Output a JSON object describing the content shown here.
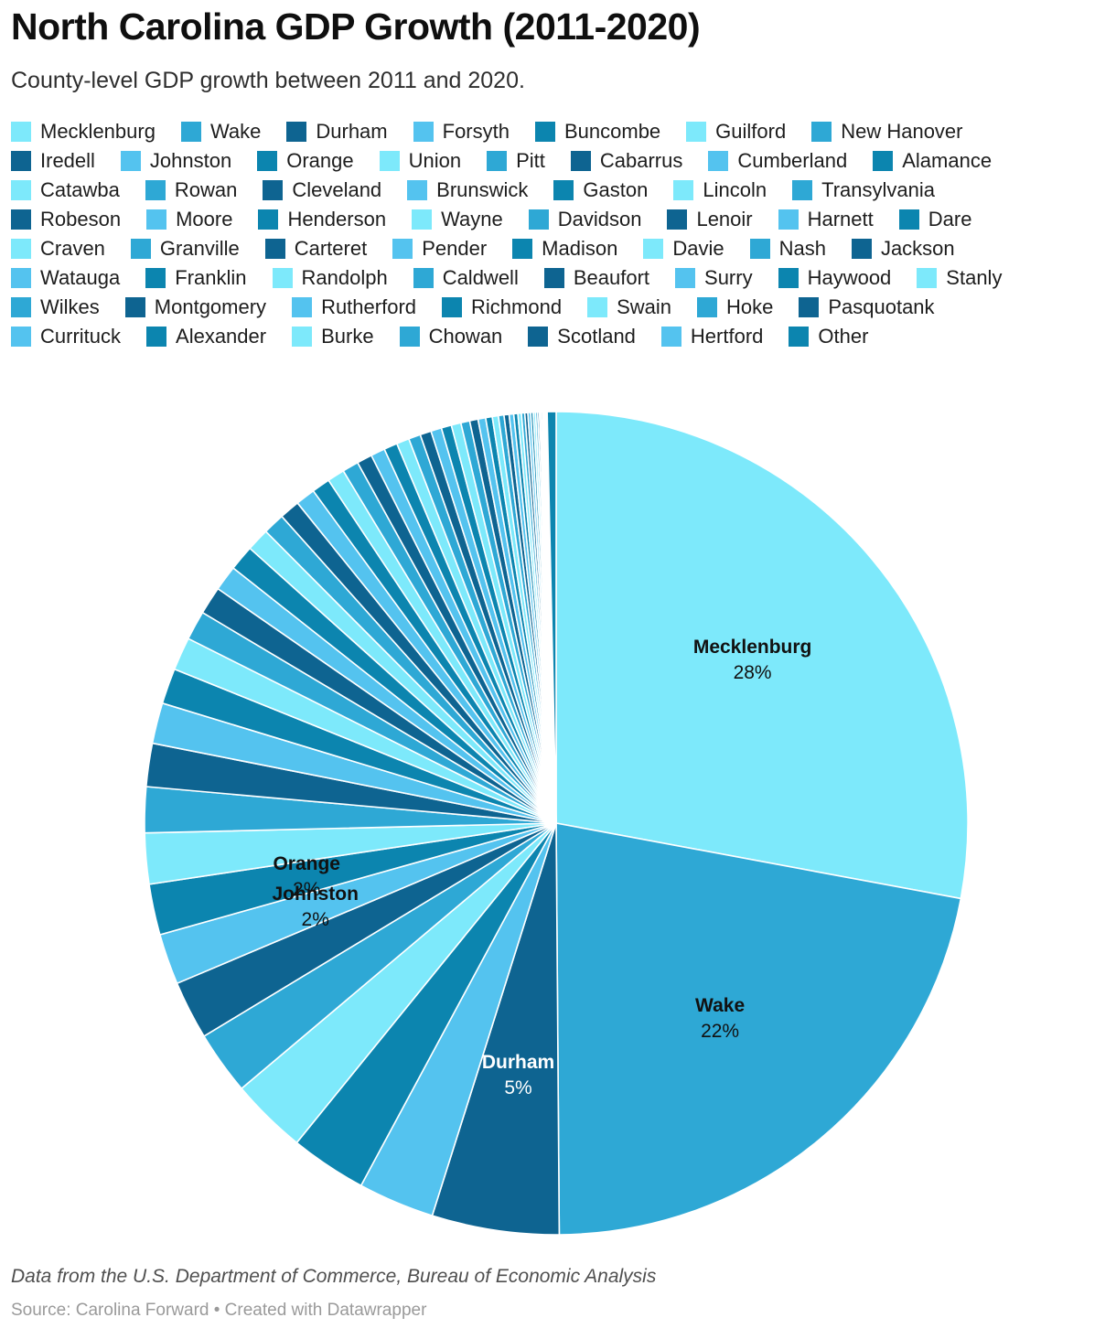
{
  "header": {
    "title": "North Carolina GDP Growth (2011-2020)",
    "subtitle": "County-level GDP growth between 2011 and 2020."
  },
  "palette": [
    "#7DE9FB",
    "#2EA8D5",
    "#0E6491",
    "#54C3EF",
    "#0C85AF"
  ],
  "legend": {
    "position": "top",
    "rows": [
      [
        "Mecklenburg",
        "Wake",
        "Durham",
        "Forsyth",
        "Buncombe",
        "Guilford",
        "New Hanover"
      ],
      [
        "Iredell",
        "Johnston",
        "Orange",
        "Union",
        "Pitt",
        "Cabarrus",
        "Cumberland",
        "Alamance"
      ],
      [
        "Catawba",
        "Rowan",
        "Cleveland",
        "Brunswick",
        "Gaston",
        "Lincoln",
        "Transylvania"
      ],
      [
        "Robeson",
        "Moore",
        "Henderson",
        "Wayne",
        "Davidson",
        "Lenoir",
        "Harnett",
        "Dare"
      ],
      [
        "Craven",
        "Granville",
        "Carteret",
        "Pender",
        "Madison",
        "Davie",
        "Nash",
        "Jackson"
      ],
      [
        "Watauga",
        "Franklin",
        "Randolph",
        "Caldwell",
        "Beaufort",
        "Surry",
        "Haywood",
        "Stanly"
      ],
      [
        "Wilkes",
        "Montgomery",
        "Rutherford",
        "Richmond",
        "Swain",
        "Hoke",
        "Pasquotank"
      ],
      [
        "Currituck",
        "Alexander",
        "Burke",
        "Chowan",
        "Scotland",
        "Hertford",
        "Other"
      ]
    ]
  },
  "chart_data": {
    "type": "pie",
    "title": "North Carolina GDP Growth (2011-2020)",
    "start_angle_deg": 0,
    "direction": "clockwise",
    "slices": [
      {
        "name": "Mecklenburg",
        "value": 28,
        "pct_label": "28%",
        "label_color": "#111111"
      },
      {
        "name": "Wake",
        "value": 22,
        "pct_label": "22%",
        "label_color": "#111111"
      },
      {
        "name": "Durham",
        "value": 5,
        "pct_label": "5%",
        "label_color": "#ffffff"
      },
      {
        "name": "Forsyth",
        "value": 3
      },
      {
        "name": "Buncombe",
        "value": 3
      },
      {
        "name": "Guilford",
        "value": 3
      },
      {
        "name": "New Hanover",
        "value": 2.5
      },
      {
        "name": "Iredell",
        "value": 2.3
      },
      {
        "name": "Johnston",
        "value": 2,
        "pct_label": "2%",
        "label_color": "#111111"
      },
      {
        "name": "Orange",
        "value": 2,
        "pct_label": "2%",
        "label_color": "#111111"
      },
      {
        "name": "Union",
        "value": 2.0
      },
      {
        "name": "Pitt",
        "value": 1.8
      },
      {
        "name": "Cabarrus",
        "value": 1.7
      },
      {
        "name": "Cumberland",
        "value": 1.6
      },
      {
        "name": "Alamance",
        "value": 1.4
      },
      {
        "name": "Catawba",
        "value": 1.3
      },
      {
        "name": "Rowan",
        "value": 1.15
      },
      {
        "name": "Cleveland",
        "value": 1.1
      },
      {
        "name": "Brunswick",
        "value": 1.0
      },
      {
        "name": "Gaston",
        "value": 1.0
      },
      {
        "name": "Lincoln",
        "value": 0.9
      },
      {
        "name": "Transylvania",
        "value": 0.85
      },
      {
        "name": "Robeson",
        "value": 0.8
      },
      {
        "name": "Moore",
        "value": 0.77
      },
      {
        "name": "Henderson",
        "value": 0.72
      },
      {
        "name": "Wayne",
        "value": 0.68
      },
      {
        "name": "Davidson",
        "value": 0.64
      },
      {
        "name": "Lenoir",
        "value": 0.6
      },
      {
        "name": "Harnett",
        "value": 0.56
      },
      {
        "name": "Dare",
        "value": 0.53
      },
      {
        "name": "Craven",
        "value": 0.5
      },
      {
        "name": "Granville",
        "value": 0.47
      },
      {
        "name": "Carteret",
        "value": 0.44
      },
      {
        "name": "Pender",
        "value": 0.42
      },
      {
        "name": "Madison",
        "value": 0.4
      },
      {
        "name": "Davie",
        "value": 0.38
      },
      {
        "name": "Nash",
        "value": 0.35
      },
      {
        "name": "Jackson",
        "value": 0.33
      },
      {
        "name": "Watauga",
        "value": 0.3
      },
      {
        "name": "Franklin",
        "value": 0.26
      },
      {
        "name": "Randolph",
        "value": 0.24
      },
      {
        "name": "Caldwell",
        "value": 0.22
      },
      {
        "name": "Beaufort",
        "value": 0.2
      },
      {
        "name": "Surry",
        "value": 0.18
      },
      {
        "name": "Haywood",
        "value": 0.16
      },
      {
        "name": "Stanly",
        "value": 0.14
      },
      {
        "name": "Wilkes",
        "value": 0.13
      },
      {
        "name": "Montgomery",
        "value": 0.12
      },
      {
        "name": "Rutherford",
        "value": 0.11
      },
      {
        "name": "Richmond",
        "value": 0.1
      },
      {
        "name": "Swain",
        "value": 0.09
      },
      {
        "name": "Hoke",
        "value": 0.08
      },
      {
        "name": "Pasquotank",
        "value": 0.07
      },
      {
        "name": "Currituck",
        "value": 0.06
      },
      {
        "name": "Alexander",
        "value": 0.06
      },
      {
        "name": "Burke",
        "value": 0.05
      },
      {
        "name": "Chowan",
        "value": 0.05
      },
      {
        "name": "Scotland",
        "value": 0.04
      },
      {
        "name": "Hertford",
        "value": 0.04
      },
      {
        "name": "Other",
        "value": 0.35
      }
    ]
  },
  "footer": {
    "attribution": "Data from the U.S. Department of Commerce, Bureau of Economic Analysis",
    "source_line": "Source: Carolina Forward • Created with Datawrapper"
  }
}
